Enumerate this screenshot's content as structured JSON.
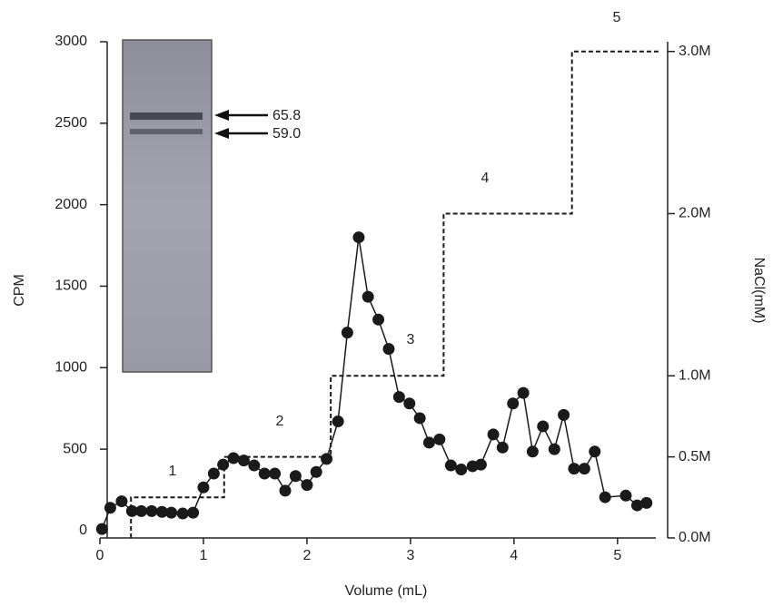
{
  "chart_data": {
    "type": "line",
    "xlabel": "Volume (mL)",
    "ylabel": "CPM",
    "y2label": "NaCl(mM)",
    "xlim": [
      0,
      5.37
    ],
    "xticks": [
      0,
      1,
      2,
      3,
      4,
      5
    ],
    "ylim": [
      -45,
      3000
    ],
    "yticks": [
      0,
      500,
      1000,
      1500,
      2000,
      2500,
      3000
    ],
    "y2lim": [
      0,
      3.06
    ],
    "y2ticks": [
      {
        "value": 0,
        "label": "0.0M"
      },
      {
        "value": 0.5,
        "label": "0.5M"
      },
      {
        "value": 1.0,
        "label": "1.0M"
      },
      {
        "value": 2.0,
        "label": "2.0M"
      },
      {
        "value": 3.0,
        "label": "3.0M"
      }
    ],
    "series": [
      {
        "color": "#1a1a1a",
        "marker": "circle",
        "x": [
          0.02,
          0.1,
          0.21,
          0.31,
          0.4,
          0.5,
          0.6,
          0.69,
          0.8,
          0.9,
          1.0,
          1.1,
          1.19,
          1.29,
          1.39,
          1.49,
          1.59,
          1.69,
          1.79,
          1.89,
          2.0,
          2.09,
          2.19,
          2.3,
          2.39,
          2.5,
          2.59,
          2.69,
          2.79,
          2.89,
          2.99,
          3.09,
          3.18,
          3.28,
          3.39,
          3.49,
          3.6,
          3.68,
          3.8,
          3.89,
          3.99,
          4.09,
          4.18,
          4.28,
          4.39,
          4.48,
          4.58,
          4.68,
          4.78,
          4.88,
          5.08,
          5.19,
          5.28
        ],
        "values": [
          10,
          140,
          180,
          120,
          120,
          120,
          115,
          110,
          105,
          110,
          265,
          350,
          405,
          445,
          430,
          400,
          350,
          350,
          245,
          335,
          280,
          360,
          440,
          670,
          1215,
          1800,
          1435,
          1295,
          1115,
          820,
          780,
          690,
          540,
          560,
          400,
          375,
          395,
          405,
          590,
          510,
          780,
          845,
          485,
          640,
          500,
          710,
          380,
          380,
          485,
          205,
          215,
          155,
          170
        ]
      },
      {
        "color": "#1a1a1a",
        "dashed": true,
        "axis": "y2",
        "x": [
          0.3,
          0.3,
          1.2,
          1.2,
          2.23,
          2.23,
          3.32,
          3.32,
          4.56,
          4.56,
          5.4
        ],
        "values": [
          0,
          0.25,
          0.25,
          0.5,
          0.5,
          1.0,
          1.0,
          2.0,
          2.0,
          3.0,
          3.0
        ]
      }
    ],
    "step_labels": [
      "1",
      "2",
      "3",
      "4",
      "5"
    ],
    "annotations": [
      "65.8",
      "59.0"
    ]
  }
}
